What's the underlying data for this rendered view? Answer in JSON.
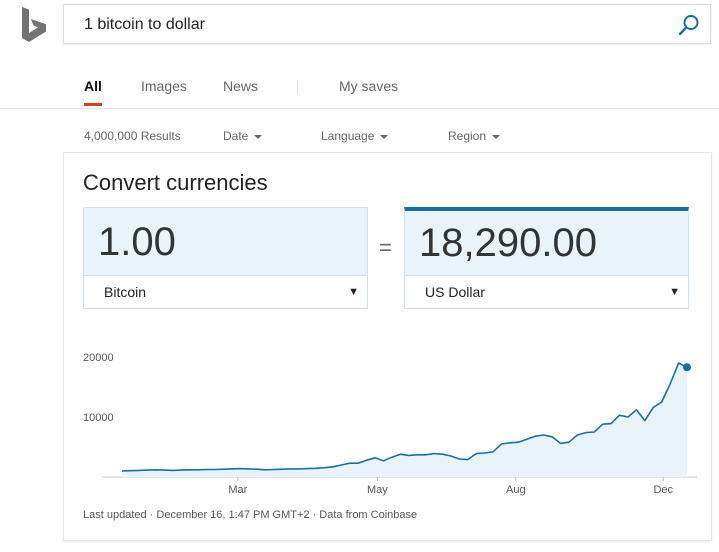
{
  "search": {
    "query": "1 bitcoin to dollar"
  },
  "tabs": [
    {
      "label": "All",
      "active": true
    },
    {
      "label": "Images"
    },
    {
      "label": "News"
    },
    {
      "label": "My saves"
    }
  ],
  "filters": {
    "results": "4,000,000 Results",
    "date": "Date",
    "language": "Language",
    "region": "Region"
  },
  "converter": {
    "title": "Convert currencies",
    "from_amount": "1.00",
    "from_currency": "Bitcoin",
    "equals": "=",
    "to_amount": "18,290.00",
    "to_currency": "US Dollar"
  },
  "chart_data": {
    "type": "area",
    "x_tick_labels": [
      "Mar",
      "May",
      "Aug",
      "Dec"
    ],
    "y_tick_labels": [
      "20000",
      "10000"
    ],
    "ylim": [
      0,
      22000
    ],
    "line_color": "#1a6ea8",
    "fill_color": "#e8f3fa",
    "values": [
      1000,
      1050,
      1100,
      1150,
      1200,
      1150,
      1100,
      1150,
      1200,
      1200,
      1250,
      1250,
      1300,
      1350,
      1400,
      1350,
      1300,
      1200,
      1250,
      1300,
      1350,
      1350,
      1400,
      1450,
      1550,
      1700,
      2000,
      2300,
      2300,
      2800,
      3200,
      2700,
      3300,
      3800,
      3600,
      3700,
      3700,
      3900,
      3800,
      3500,
      3000,
      2900,
      3900,
      4000,
      4200,
      5500,
      5700,
      5800,
      6300,
      6800,
      7000,
      6700,
      5600,
      5800,
      7000,
      7400,
      7500,
      8800,
      8900,
      10300,
      10000,
      11200,
      9400,
      11600,
      12500,
      15500,
      19000,
      18290
    ]
  },
  "footer": {
    "note": "Last updated · December 16, 1:47 PM GMT+2 · Data from Coinbase"
  }
}
